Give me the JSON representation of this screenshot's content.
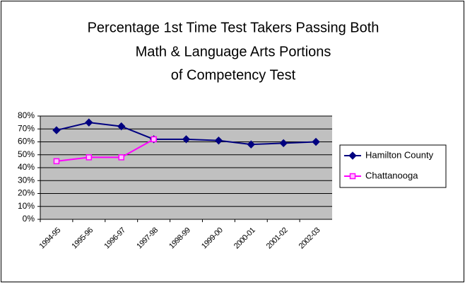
{
  "chart_data": {
    "type": "line",
    "title": [
      "Percentage 1st Time Test Takers Passing Both",
      "Math & Language Arts Portions",
      "of Competency Test"
    ],
    "categories": [
      "1994-95",
      "1995-96",
      "1996-97",
      "1997-98",
      "1998-99",
      "1999-00",
      "2000-01",
      "2001-02",
      "2002-03"
    ],
    "series": [
      {
        "name": "Hamilton County",
        "color": "#000080",
        "marker": "diamond",
        "values": [
          69,
          75,
          72,
          62,
          62,
          61,
          58,
          59,
          60
        ]
      },
      {
        "name": "Chattanooga",
        "color": "#ff00ff",
        "marker": "square",
        "values": [
          45,
          48,
          48,
          62,
          null,
          null,
          null,
          null,
          null
        ]
      }
    ],
    "ylim": [
      0,
      80
    ],
    "yticks": [
      {
        "value": 0,
        "label": "0%"
      },
      {
        "value": 10,
        "label": "10%"
      },
      {
        "value": 20,
        "label": "20%"
      },
      {
        "value": 30,
        "label": "30%"
      },
      {
        "value": 40,
        "label": "40%"
      },
      {
        "value": 50,
        "label": "50%"
      },
      {
        "value": 60,
        "label": "60%"
      },
      {
        "value": 70,
        "label": "70%"
      },
      {
        "value": 80,
        "label": "80%"
      }
    ],
    "grid": true,
    "plot_background": "#c0c0c0",
    "legend": "right"
  }
}
